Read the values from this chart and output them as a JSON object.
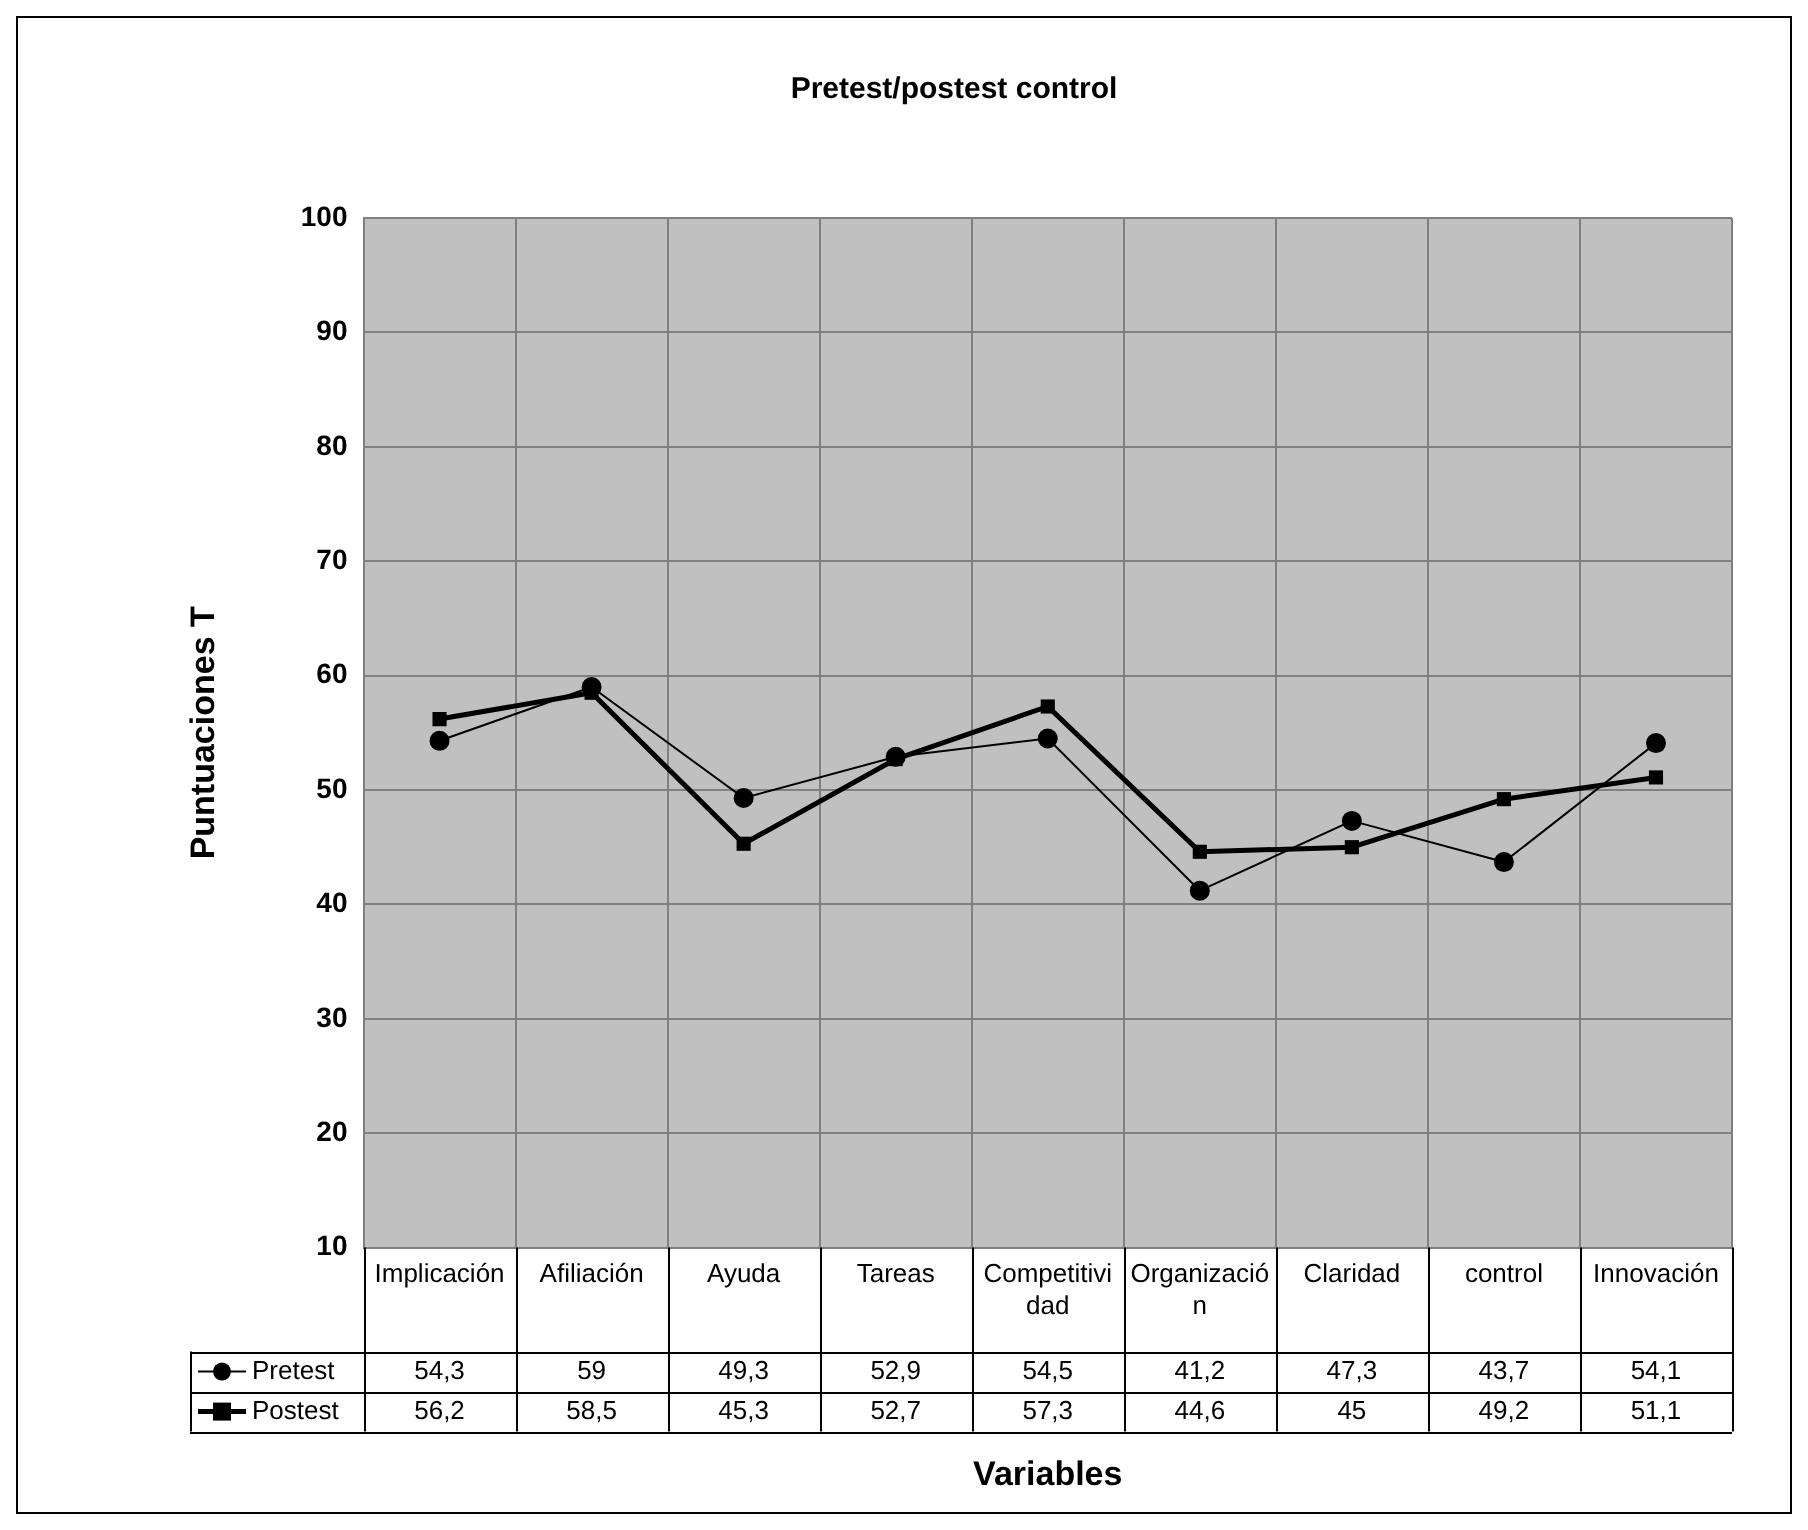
{
  "chart_data": {
    "type": "line",
    "title": "Pretest/postest control",
    "xlabel": "Variables",
    "ylabel": "Puntuaciones T",
    "categories": [
      "Implicación",
      "Afiliación",
      "Ayuda",
      "Tareas",
      "Competitividad",
      "Organización",
      "Claridad",
      "control",
      "Innovación"
    ],
    "series": [
      {
        "name": "Pretest",
        "color": "#000000",
        "marker": "circle",
        "values": [
          54.3,
          59,
          49.3,
          52.9,
          54.5,
          41.2,
          47.3,
          43.7,
          54.1
        ],
        "value_labels": [
          "54,3",
          "59",
          "49,3",
          "52,9",
          "54,5",
          "41,2",
          "47,3",
          "43,7",
          "54,1"
        ]
      },
      {
        "name": "Postest",
        "color": "#000000",
        "marker": "square",
        "values": [
          56.2,
          58.5,
          45.3,
          52.7,
          57.3,
          44.6,
          45,
          49.2,
          51.1
        ],
        "value_labels": [
          "56,2",
          "58,5",
          "45,3",
          "52,7",
          "57,3",
          "44,6",
          "45",
          "49,2",
          "51,1"
        ]
      }
    ],
    "ylim": [
      10,
      100
    ],
    "yticks": [
      10,
      20,
      30,
      40,
      50,
      60,
      70,
      80,
      90,
      100
    ],
    "grid": true,
    "legend": "bottom left"
  }
}
